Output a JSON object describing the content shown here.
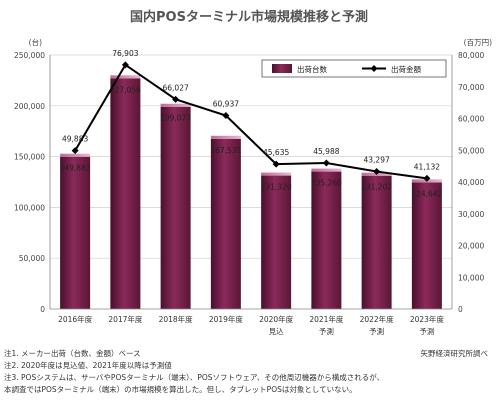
{
  "title": "国内POSターミナル市場規模推移と予測",
  "chart_data": {
    "type": "bar",
    "categories": [
      "2016年度",
      "2017年度",
      "2018年度",
      "2019年度",
      "2020年度",
      "2021年度",
      "2022年度",
      "2023年度"
    ],
    "category_sublabels": [
      "",
      "",
      "",
      "",
      "見込",
      "予測",
      "予測",
      "予測"
    ],
    "y_left_unit": "(台)",
    "y_right_unit": "(百万円)",
    "y_left_lim": [
      0,
      250000
    ],
    "y_left_ticks": [
      0,
      50000,
      100000,
      150000,
      200000,
      250000
    ],
    "y_left_tick_labels": [
      "0",
      "50,000",
      "100,000",
      "150,000",
      "200,000",
      "250,000"
    ],
    "y_right_lim": [
      0,
      80000
    ],
    "y_right_ticks": [
      0,
      10000,
      20000,
      30000,
      40000,
      50000,
      60000,
      70000,
      80000
    ],
    "y_right_tick_labels": [
      "0",
      "10,000",
      "20,000",
      "30,000",
      "40,000",
      "50,000",
      "60,000",
      "70,000",
      "80,000"
    ],
    "series": [
      {
        "name": "出荷台数",
        "type": "bar",
        "axis": "left",
        "color": "#7a1f4a",
        "values": [
          149883,
          227056,
          199077,
          167531,
          131320,
          135260,
          131202,
          124642
        ],
        "labels": [
          "149,883",
          "227,056",
          "199,077",
          "167,531",
          "131,320",
          "135,260",
          "131,202",
          "124,642"
        ]
      },
      {
        "name": "出荷金額",
        "type": "line",
        "axis": "right",
        "color": "#000000",
        "values": [
          49883,
          76903,
          66027,
          60937,
          45635,
          45988,
          43297,
          41132
        ],
        "labels": [
          "49,883",
          "76,903",
          "66,027",
          "60,937",
          "45,635",
          "45,988",
          "43,297",
          "41,132"
        ]
      }
    ],
    "legend_position": "top-right",
    "grid": true
  },
  "notes": [
    "注1. メーカー出荷（台数、金額）ベース",
    "注2. 2020年度は見込値、2021年度以降は予測値",
    "注3. POSシステムは、サーバやPOSターミナル（端末）、POSソフトウェア、その他周辺機器から構成されるが、",
    "本調査ではPOSターミナル（端末）の市場規模を算出した。但し、タブレットPOSは対象としていない。"
  ],
  "source": "矢野経済研究所調べ"
}
